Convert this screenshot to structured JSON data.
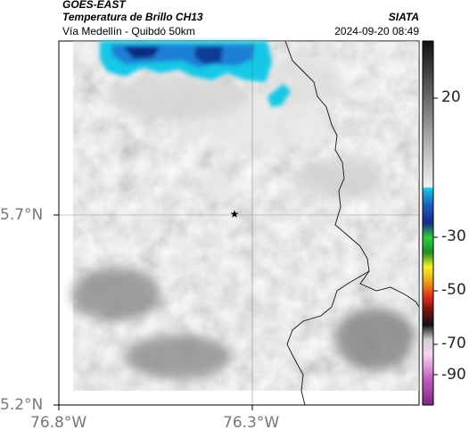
{
  "header": {
    "satellite": "GOES-EAST",
    "product": "Temperatura de Brillo CH13",
    "route": "Vía Medellín - Quibdó 50km",
    "brand": "SIATA",
    "timestamp": "2024-09-20 08:49"
  },
  "map": {
    "lat_ticks": [
      "5.7°N",
      "5.2°N"
    ],
    "lon_ticks": [
      "76.8°W",
      "76.3°W"
    ],
    "marker": "star-marker"
  },
  "colorbar": {
    "tick_labels": [
      "20",
      "-30",
      "-50",
      "-70",
      "-90"
    ],
    "colors": {
      "cold_blue": "#0a4aa8",
      "cyan": "#19c8e6",
      "green": "#2bd23a",
      "yellow": "#f3f31c",
      "red": "#e0351a",
      "magenta": "#b94ab5"
    }
  }
}
